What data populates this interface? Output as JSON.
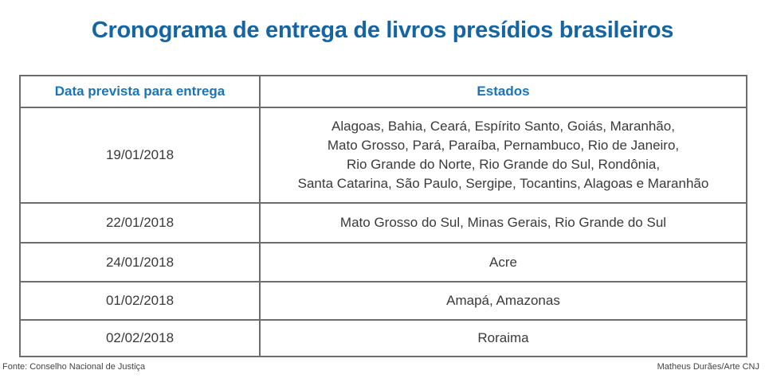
{
  "title": "Cronograma de entrega de livros presídios brasileiros",
  "table": {
    "headers": {
      "date": "Data prevista para entrega",
      "states": "Estados"
    },
    "rows": [
      {
        "date": "19/01/2018",
        "states_lines": [
          "Alagoas, Bahia, Ceará, Espírito Santo, Goiás, Maranhão,",
          "Mato Grosso, Pará, Paraíba, Pernambuco, Rio de Janeiro,",
          "Rio Grande do Norte, Rio Grande do Sul, Rondônia,",
          "Santa Catarina, São Paulo, Sergipe, Tocantins, Alagoas e Maranhão"
        ]
      },
      {
        "date": "22/01/2018",
        "states": "Mato Grosso do Sul, Minas Gerais, Rio Grande do Sul"
      },
      {
        "date": "24/01/2018",
        "states": "Acre"
      },
      {
        "date": "01/02/2018",
        "states": "Amapá, Amazonas"
      },
      {
        "date": "02/02/2018",
        "states": "Roraima"
      }
    ]
  },
  "footer": {
    "source": "Fonte: Conselho Nacional de Justiça",
    "credit": "Matheus Durães/Arte CNJ"
  },
  "colors": {
    "title": "#1565a3",
    "header_text": "#1a75b8",
    "border": "#6d6d6d",
    "body_text": "#3a3a3a"
  }
}
